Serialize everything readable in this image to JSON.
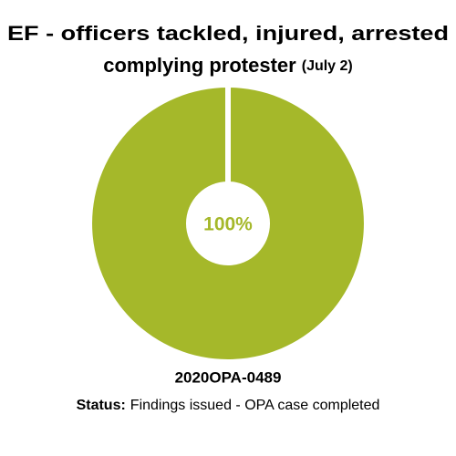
{
  "chart_data": {
    "type": "donut",
    "title": [
      "EF - officers tackled, injured, arrested",
      "complying protester"
    ],
    "title_note": "(July 2)",
    "values": [
      100
    ],
    "value_labels": [
      "100%"
    ],
    "colors": [
      "#a5b82a"
    ],
    "footer": {
      "case": "2020OPA-0489",
      "status_label": "Status:",
      "status": "Findings issued - OPA case completed"
    }
  }
}
